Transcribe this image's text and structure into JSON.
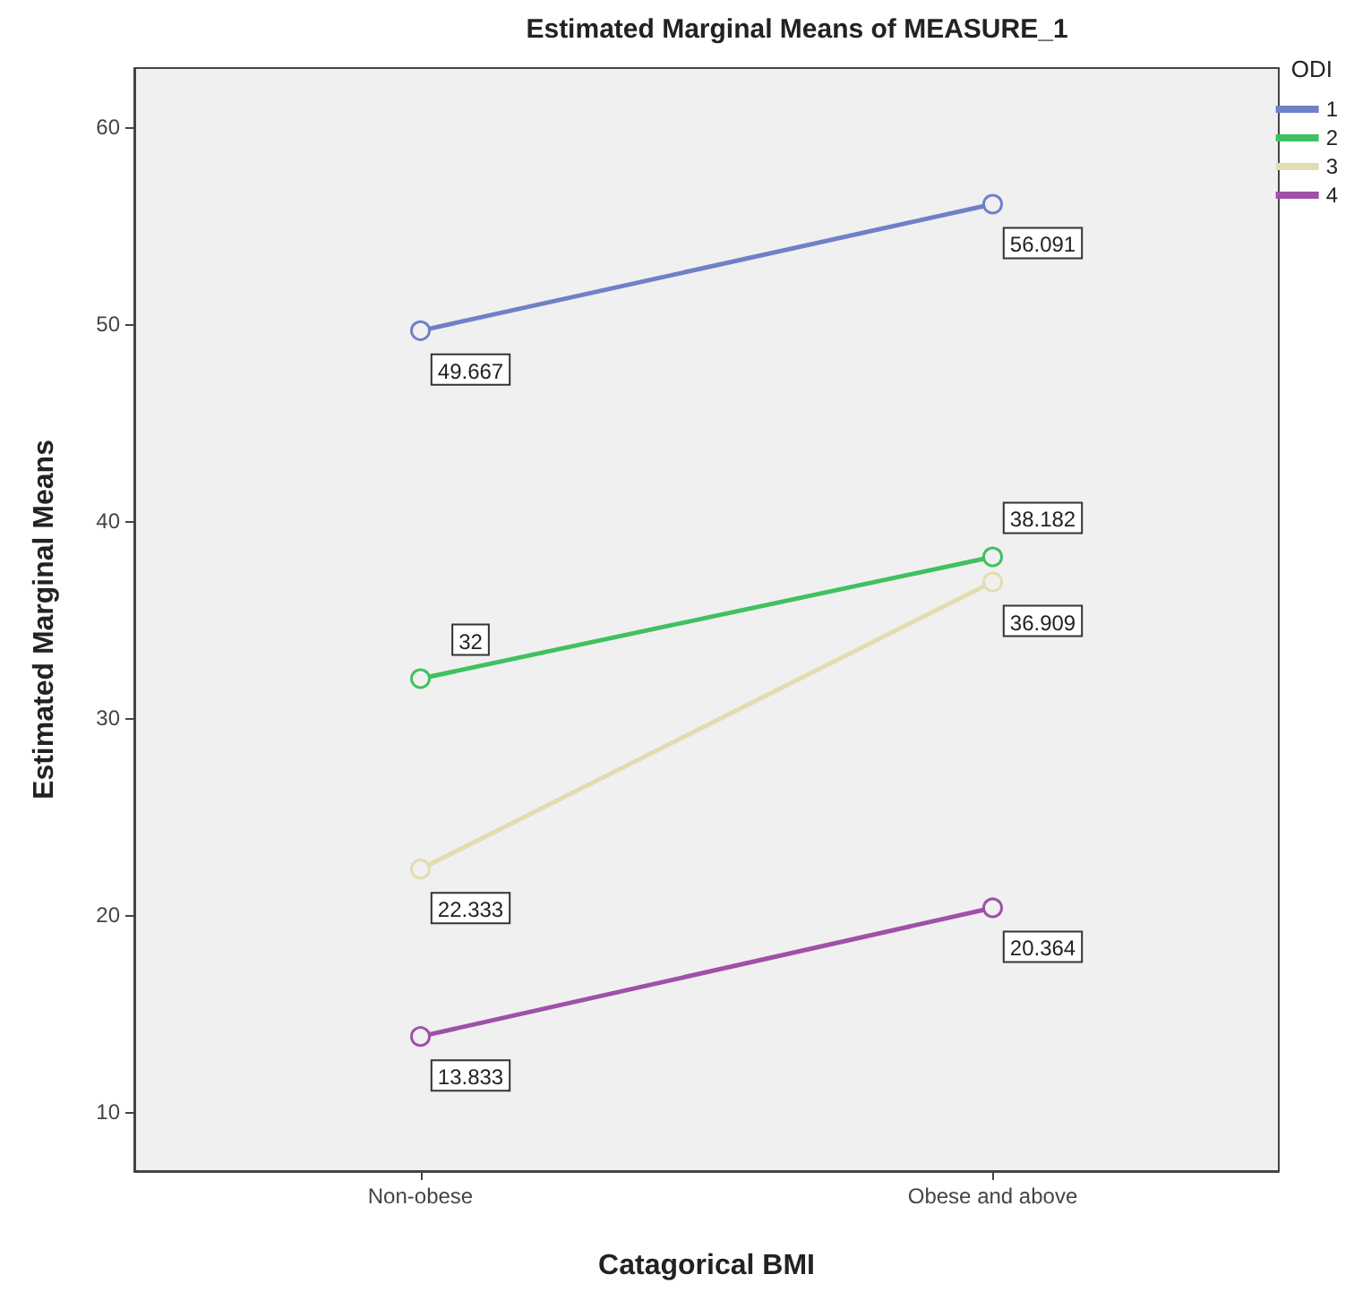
{
  "chart_data": {
    "type": "line",
    "title": "Estimated Marginal Means of MEASURE_1",
    "xlabel": "Catagorical BMI",
    "ylabel": "Estimated Marginal Means",
    "categories": [
      "Non-obese",
      "Obese and above"
    ],
    "legend_title": "ODI",
    "series": [
      {
        "name": "1",
        "color": "#7080c8",
        "values": [
          49.667,
          56.091
        ]
      },
      {
        "name": "2",
        "color": "#40c060",
        "values": [
          32,
          38.182
        ]
      },
      {
        "name": "3",
        "color": "#e2ddb0",
        "values": [
          22.333,
          36.909
        ]
      },
      {
        "name": "4",
        "color": "#a050a8",
        "values": [
          13.833,
          20.364
        ]
      }
    ],
    "ylim": [
      7,
      63
    ],
    "yticks": [
      10,
      20,
      30,
      40,
      50,
      60
    ],
    "grid": false,
    "legend": "top right",
    "marker": "circle",
    "line_style": "solid",
    "data_labels": true
  }
}
